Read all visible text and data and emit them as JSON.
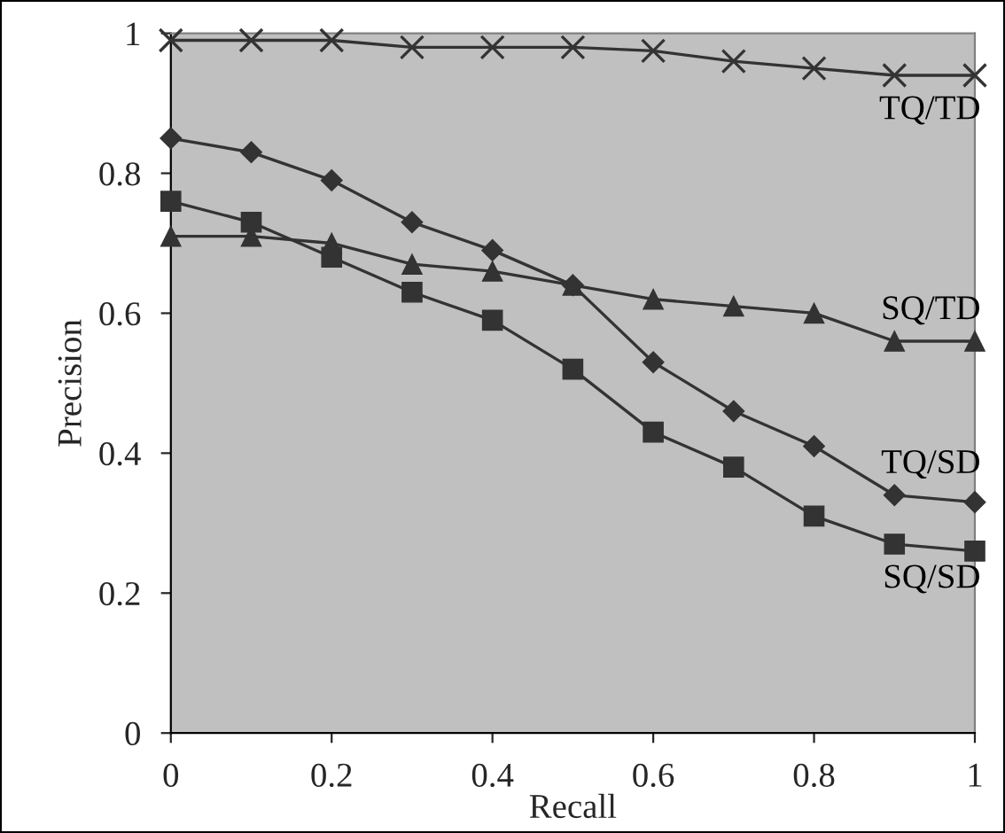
{
  "chart_data": {
    "type": "line",
    "xlabel": "Recall",
    "ylabel": "Precision",
    "x": [
      0,
      0.1,
      0.2,
      0.3,
      0.4,
      0.5,
      0.6,
      0.7,
      0.8,
      0.9,
      1
    ],
    "xlim": [
      0,
      1
    ],
    "xticks": [
      0,
      0.2,
      0.4,
      0.6,
      0.8,
      1
    ],
    "ylim": [
      0,
      1
    ],
    "yticks": [
      0,
      0.2,
      0.4,
      0.6,
      0.8,
      1
    ],
    "grid": false,
    "legend": false,
    "line_style": "solid",
    "series": [
      {
        "name": "TQ/TD",
        "color": "#333333",
        "marker": "cross",
        "values": [
          0.99,
          0.99,
          0.99,
          0.98,
          0.98,
          0.98,
          0.975,
          0.96,
          0.95,
          0.94,
          0.94
        ]
      },
      {
        "name": "SQ/TD",
        "color": "#333333",
        "marker": "triangle",
        "values": [
          0.71,
          0.71,
          0.7,
          0.67,
          0.66,
          0.64,
          0.62,
          0.61,
          0.6,
          0.56,
          0.56
        ]
      },
      {
        "name": "TQ/SD",
        "color": "#333333",
        "marker": "diamond",
        "values": [
          0.85,
          0.83,
          0.79,
          0.73,
          0.69,
          0.64,
          0.53,
          0.46,
          0.41,
          0.34,
          0.33
        ]
      },
      {
        "name": "SQ/SD",
        "color": "#333333",
        "marker": "square",
        "values": [
          0.76,
          0.73,
          0.68,
          0.63,
          0.59,
          0.52,
          0.43,
          0.38,
          0.31,
          0.27,
          0.26
        ]
      }
    ]
  }
}
